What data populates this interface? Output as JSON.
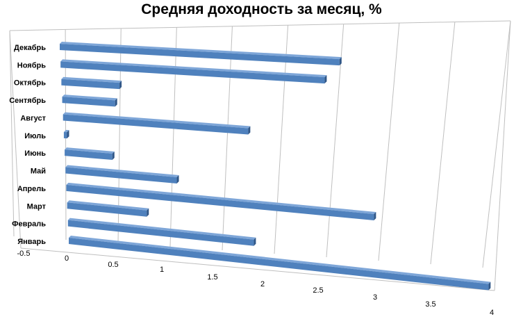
{
  "chart_data": {
    "type": "bar",
    "orientation": "horizontal",
    "style": "3d-perspective",
    "title": "Средняя доходность за месяц, %",
    "categories": [
      "Декабрь",
      "Ноябрь",
      "Октябрь",
      "Сентябрь",
      "Август",
      "Июль",
      "Июнь",
      "Май",
      "Апрель",
      "Март",
      "Февраль",
      "Январь"
    ],
    "values": [
      2.65,
      2.5,
      0.55,
      0.5,
      1.75,
      0.03,
      0.45,
      1.05,
      2.9,
      0.75,
      1.75,
      3.95
    ],
    "xlim": [
      -0.5,
      4
    ],
    "ticks": [
      "-0.5",
      "0",
      "0.5",
      "1",
      "1.5",
      "2",
      "2.5",
      "3",
      "3.5",
      "4"
    ],
    "tick_values": [
      -0.5,
      0,
      0.5,
      1,
      1.5,
      2,
      2.5,
      3,
      3.5,
      4
    ],
    "bar_color": "#4f81bd",
    "bar_color_dark": "#2f5687",
    "bar_color_light": "#7ea6d8",
    "grid": true,
    "legend": "none"
  }
}
